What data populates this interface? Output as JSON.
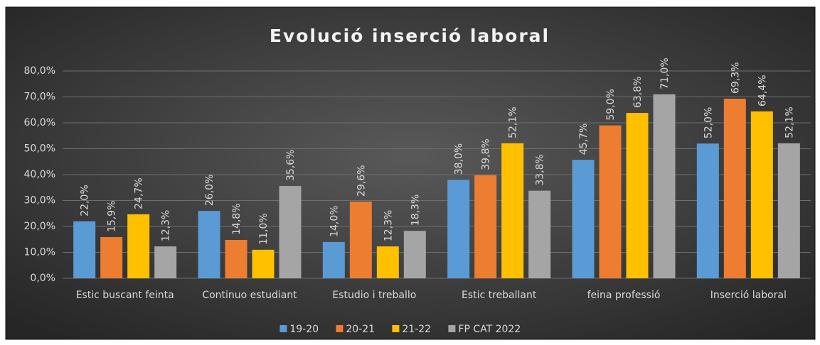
{
  "chart_data": {
    "type": "bar",
    "title": "Evolució inserció laboral",
    "categories": [
      "Estic buscant feinta",
      "Continuo estudiant",
      "Estudio i treballo",
      "Estic treballant",
      "feina professió",
      "Inserció laboral"
    ],
    "series": [
      {
        "name": "19-20",
        "color": "#5b9bd5",
        "values": [
          22.0,
          26.0,
          14.0,
          38.0,
          45.7,
          52.0
        ],
        "value_labels": [
          "22,0%",
          "26,0%",
          "14,0%",
          "38,0%",
          "45,7%",
          "52,0%"
        ]
      },
      {
        "name": "20-21",
        "color": "#ed7d31",
        "values": [
          15.9,
          14.8,
          29.6,
          39.8,
          59.0,
          69.3
        ],
        "value_labels": [
          "15,9%",
          "14,8%",
          "29,6%",
          "39,8%",
          "59,0%",
          "69,3%"
        ]
      },
      {
        "name": "21-22",
        "color": "#ffc000",
        "values": [
          24.7,
          11.0,
          12.3,
          52.1,
          63.8,
          64.4
        ],
        "value_labels": [
          "24,7%",
          "11,0%",
          "12,3%",
          "52,1%",
          "63,8%",
          "64,4%"
        ]
      },
      {
        "name": "FP CAT 2022",
        "color": "#a5a5a5",
        "values": [
          12.3,
          35.6,
          18.3,
          33.8,
          71.0,
          52.1
        ],
        "value_labels": [
          "12,3%",
          "35,6%",
          "18,3%",
          "33,8%",
          "71,0%",
          "52,1%"
        ]
      }
    ],
    "ylim": [
      0,
      80
    ],
    "yticks": [
      {
        "value": 0,
        "label": "0,0%"
      },
      {
        "value": 10,
        "label": "10,0%"
      },
      {
        "value": 20,
        "label": "20,0%"
      },
      {
        "value": 30,
        "label": "30,0%"
      },
      {
        "value": 40,
        "label": "40,0%"
      },
      {
        "value": 50,
        "label": "50,0%"
      },
      {
        "value": 60,
        "label": "60,0%"
      },
      {
        "value": 70,
        "label": "70,0%"
      },
      {
        "value": 80,
        "label": "80,0%"
      }
    ],
    "grid": true,
    "legend": "bottom"
  }
}
